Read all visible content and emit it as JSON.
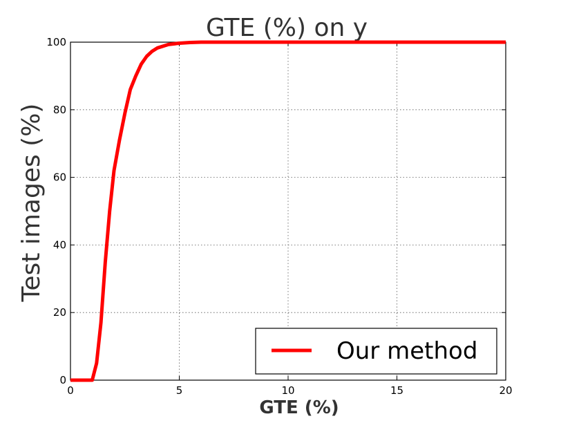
{
  "chart_data": {
    "type": "line",
    "title": "GTE (%) on y",
    "xlabel": "GTE (%)",
    "ylabel": "Test images (%)",
    "xlim": [
      0,
      20
    ],
    "ylim": [
      0,
      100
    ],
    "xticks": [
      0,
      5,
      10,
      15,
      20
    ],
    "yticks": [
      0,
      20,
      40,
      60,
      80,
      100
    ],
    "x_tick_labels": [
      "0",
      "5",
      "10",
      "15",
      "20"
    ],
    "y_tick_labels": [
      "0",
      "20",
      "40",
      "60",
      "80",
      "100"
    ],
    "grid": true,
    "legend_position": "bottom-right",
    "series": [
      {
        "name": "Our method",
        "color": "#ff0000",
        "x": [
          0,
          1.0,
          1.2,
          1.4,
          1.6,
          1.8,
          2.0,
          2.25,
          2.5,
          2.75,
          3.0,
          3.25,
          3.5,
          3.75,
          4.0,
          4.5,
          5.0,
          5.5,
          6.0,
          7.0,
          10,
          15,
          20
        ],
        "y": [
          0,
          0,
          5,
          17,
          35,
          50,
          62,
          71,
          79,
          86,
          90,
          93.5,
          95.8,
          97.3,
          98.3,
          99.3,
          99.7,
          99.9,
          100,
          100,
          100,
          100,
          100
        ]
      }
    ]
  }
}
